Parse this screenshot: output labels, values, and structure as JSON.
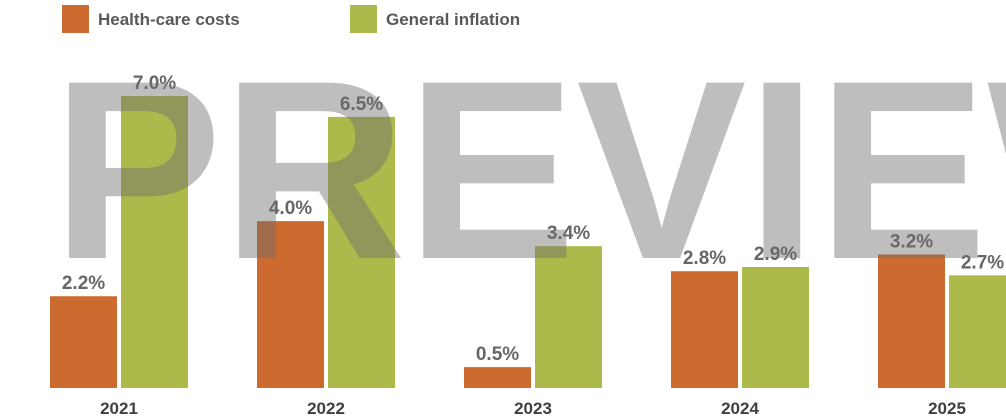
{
  "chart_data": {
    "type": "bar",
    "categories": [
      "2021",
      "2022",
      "2023",
      "2024",
      "2025"
    ],
    "series": [
      {
        "name": "Health-care costs",
        "color": "#cc6a30",
        "values": [
          2.2,
          4.0,
          0.5,
          2.8,
          3.2
        ],
        "value_labels": [
          "2.2%",
          "4.0%",
          "0.5%",
          "2.8%",
          "3.2%"
        ]
      },
      {
        "name": "General inflation",
        "color": "#adb94a",
        "values": [
          7.0,
          6.5,
          3.4,
          2.9,
          2.7
        ],
        "value_labels": [
          "7.0%",
          "6.5%",
          "3.4%",
          "2.9%",
          "2.7%"
        ]
      }
    ],
    "watermark": "PREVIEW"
  }
}
